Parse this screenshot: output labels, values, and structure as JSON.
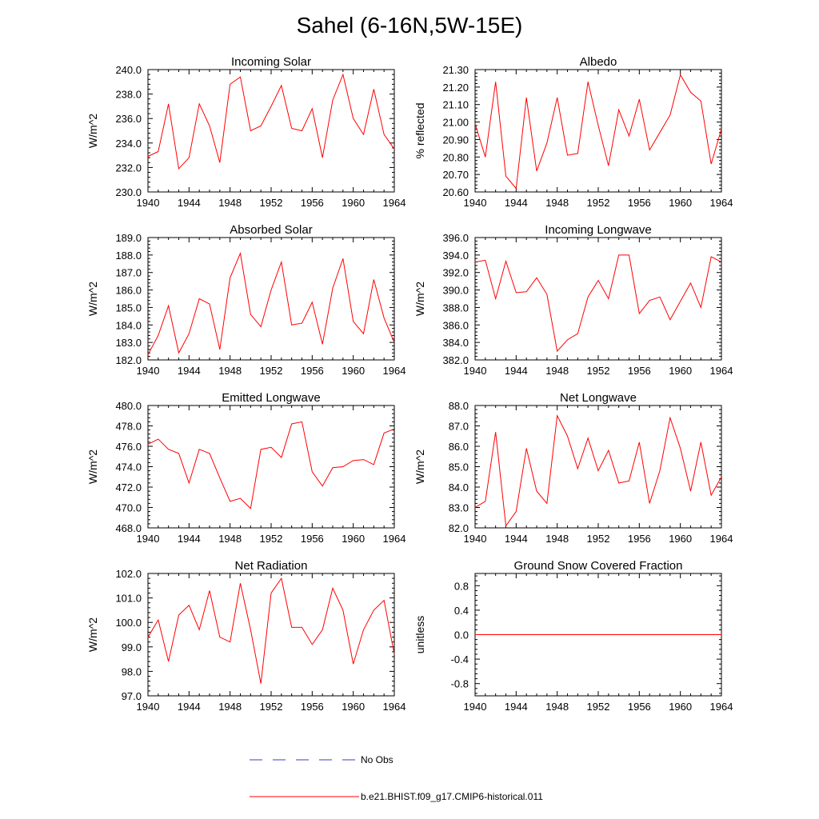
{
  "figure": {
    "title": "Sahel (6-16N,5W-15E)"
  },
  "legend": [
    {
      "label": "No Obs",
      "color": "#3b3bc4",
      "dash": true
    },
    {
      "label": "b.e21.BHIST.f09_g17.CMIP6-historical.011",
      "color": "#ff0000",
      "dash": false
    }
  ],
  "chart_data": [
    {
      "type": "line",
      "title": "Incoming Solar",
      "ylabel": "W/m^2",
      "xlim": [
        1940,
        1964
      ],
      "xticks": [
        1940,
        1944,
        1948,
        1952,
        1956,
        1960,
        1964
      ],
      "ylim": [
        230.0,
        240.0
      ],
      "yticks": [
        230.0,
        232.0,
        234.0,
        236.0,
        238.0,
        240.0
      ],
      "ydecimals": 1,
      "x": [
        1940,
        1941,
        1942,
        1943,
        1944,
        1945,
        1946,
        1947,
        1948,
        1949,
        1950,
        1951,
        1952,
        1953,
        1954,
        1955,
        1956,
        1957,
        1958,
        1959,
        1960,
        1961,
        1962,
        1963,
        1964
      ],
      "series": [
        {
          "name": "b.e21.BHIST.f09_g17.CMIP6-historical.011",
          "color": "#ff0000",
          "values": [
            232.9,
            233.3,
            237.2,
            231.9,
            232.8,
            237.2,
            235.4,
            232.4,
            238.8,
            239.4,
            235.0,
            235.4,
            237.0,
            238.7,
            235.2,
            235.0,
            236.8,
            232.8,
            237.5,
            239.6,
            236.0,
            234.7,
            238.4,
            234.7,
            233.5
          ]
        }
      ]
    },
    {
      "type": "line",
      "title": "Albedo",
      "ylabel": "% reflected",
      "xlim": [
        1940,
        1964
      ],
      "xticks": [
        1940,
        1944,
        1948,
        1952,
        1956,
        1960,
        1964
      ],
      "ylim": [
        20.6,
        21.3
      ],
      "yticks": [
        20.6,
        20.7,
        20.8,
        20.9,
        21.0,
        21.1,
        21.2,
        21.3
      ],
      "ydecimals": 2,
      "x": [
        1940,
        1941,
        1942,
        1943,
        1944,
        1945,
        1946,
        1947,
        1948,
        1949,
        1950,
        1951,
        1952,
        1953,
        1954,
        1955,
        1956,
        1957,
        1958,
        1959,
        1960,
        1961,
        1962,
        1963,
        1964
      ],
      "series": [
        {
          "name": "b.e21.BHIST.f09_g17.CMIP6-historical.011",
          "color": "#ff0000",
          "values": [
            20.99,
            20.8,
            21.23,
            20.69,
            20.62,
            21.14,
            20.72,
            20.88,
            21.14,
            20.81,
            20.82,
            21.23,
            20.98,
            20.75,
            21.07,
            20.92,
            21.13,
            20.84,
            20.94,
            21.04,
            21.27,
            21.17,
            21.12,
            20.76,
            20.96
          ]
        }
      ]
    },
    {
      "type": "line",
      "title": "Absorbed Solar",
      "ylabel": "W/m^2",
      "xlim": [
        1940,
        1964
      ],
      "xticks": [
        1940,
        1944,
        1948,
        1952,
        1956,
        1960,
        1964
      ],
      "ylim": [
        182.0,
        189.0
      ],
      "yticks": [
        182.0,
        183.0,
        184.0,
        185.0,
        186.0,
        187.0,
        188.0,
        189.0
      ],
      "ydecimals": 1,
      "x": [
        1940,
        1941,
        1942,
        1943,
        1944,
        1945,
        1946,
        1947,
        1948,
        1949,
        1950,
        1951,
        1952,
        1953,
        1954,
        1955,
        1956,
        1957,
        1958,
        1959,
        1960,
        1961,
        1962,
        1963,
        1964
      ],
      "series": [
        {
          "name": "b.e21.BHIST.f09_g17.CMIP6-historical.011",
          "color": "#ff0000",
          "values": [
            182.3,
            183.4,
            185.1,
            182.4,
            183.5,
            185.5,
            185.2,
            182.6,
            186.7,
            188.1,
            184.6,
            183.9,
            186.0,
            187.6,
            184.0,
            184.1,
            185.3,
            182.9,
            186.1,
            187.8,
            184.2,
            183.5,
            186.6,
            184.4,
            183.0
          ]
        }
      ]
    },
    {
      "type": "line",
      "title": "Incoming Longwave",
      "ylabel": "W/m^2",
      "xlim": [
        1940,
        1964
      ],
      "xticks": [
        1940,
        1944,
        1948,
        1952,
        1956,
        1960,
        1964
      ],
      "ylim": [
        382.0,
        396.0
      ],
      "yticks": [
        382.0,
        384.0,
        386.0,
        388.0,
        390.0,
        392.0,
        394.0,
        396.0
      ],
      "ydecimals": 1,
      "x": [
        1940,
        1941,
        1942,
        1943,
        1944,
        1945,
        1946,
        1947,
        1948,
        1949,
        1950,
        1951,
        1952,
        1953,
        1954,
        1955,
        1956,
        1957,
        1958,
        1959,
        1960,
        1961,
        1962,
        1963,
        1964
      ],
      "series": [
        {
          "name": "b.e21.BHIST.f09_g17.CMIP6-historical.011",
          "color": "#ff0000",
          "values": [
            393.2,
            393.4,
            389.0,
            393.3,
            389.7,
            389.8,
            391.4,
            389.5,
            383.0,
            384.3,
            385.0,
            389.2,
            391.1,
            389.0,
            394.0,
            394.0,
            387.3,
            388.8,
            389.2,
            386.6,
            388.7,
            390.8,
            388.0,
            393.8,
            393.2
          ]
        }
      ]
    },
    {
      "type": "line",
      "title": "Emitted Longwave",
      "ylabel": "W/m^2",
      "xlim": [
        1940,
        1964
      ],
      "xticks": [
        1940,
        1944,
        1948,
        1952,
        1956,
        1960,
        1964
      ],
      "ylim": [
        468.0,
        480.0
      ],
      "yticks": [
        468.0,
        470.0,
        472.0,
        474.0,
        476.0,
        478.0,
        480.0
      ],
      "ydecimals": 1,
      "x": [
        1940,
        1941,
        1942,
        1943,
        1944,
        1945,
        1946,
        1947,
        1948,
        1949,
        1950,
        1951,
        1952,
        1953,
        1954,
        1955,
        1956,
        1957,
        1958,
        1959,
        1960,
        1961,
        1962,
        1963,
        1964
      ],
      "series": [
        {
          "name": "b.e21.BHIST.f09_g17.CMIP6-historical.011",
          "color": "#ff0000",
          "values": [
            476.2,
            476.7,
            475.7,
            475.3,
            472.4,
            475.7,
            475.3,
            472.9,
            470.6,
            470.9,
            469.9,
            475.7,
            475.9,
            474.9,
            478.2,
            478.4,
            473.5,
            472.1,
            473.9,
            474.0,
            474.6,
            474.7,
            474.2,
            477.3,
            477.7
          ]
        }
      ]
    },
    {
      "type": "line",
      "title": "Net Longwave",
      "ylabel": "W/m^2",
      "xlim": [
        1940,
        1964
      ],
      "xticks": [
        1940,
        1944,
        1948,
        1952,
        1956,
        1960,
        1964
      ],
      "ylim": [
        82.0,
        88.0
      ],
      "yticks": [
        82.0,
        83.0,
        84.0,
        85.0,
        86.0,
        87.0,
        88.0
      ],
      "ydecimals": 1,
      "x": [
        1940,
        1941,
        1942,
        1943,
        1944,
        1945,
        1946,
        1947,
        1948,
        1949,
        1950,
        1951,
        1952,
        1953,
        1954,
        1955,
        1956,
        1957,
        1958,
        1959,
        1960,
        1961,
        1962,
        1963,
        1964
      ],
      "series": [
        {
          "name": "b.e21.BHIST.f09_g17.CMIP6-historical.011",
          "color": "#ff0000",
          "values": [
            83.0,
            83.3,
            86.7,
            82.1,
            82.8,
            85.9,
            83.8,
            83.2,
            87.5,
            86.5,
            84.9,
            86.4,
            84.8,
            85.8,
            84.2,
            84.3,
            86.2,
            83.2,
            84.8,
            87.4,
            85.9,
            83.8,
            86.2,
            83.6,
            84.5
          ]
        }
      ]
    },
    {
      "type": "line",
      "title": "Net Radiation",
      "ylabel": "W/m^2",
      "xlim": [
        1940,
        1964
      ],
      "xticks": [
        1940,
        1944,
        1948,
        1952,
        1956,
        1960,
        1964
      ],
      "ylim": [
        97.0,
        102.0
      ],
      "yticks": [
        97.0,
        98.0,
        99.0,
        100.0,
        101.0,
        102.0
      ],
      "ydecimals": 1,
      "x": [
        1940,
        1941,
        1942,
        1943,
        1944,
        1945,
        1946,
        1947,
        1948,
        1949,
        1950,
        1951,
        1952,
        1953,
        1954,
        1955,
        1956,
        1957,
        1958,
        1959,
        1960,
        1961,
        1962,
        1963,
        1964
      ],
      "series": [
        {
          "name": "b.e21.BHIST.f09_g17.CMIP6-historical.011",
          "color": "#ff0000",
          "values": [
            99.4,
            100.1,
            98.4,
            100.3,
            100.7,
            99.7,
            101.3,
            99.4,
            99.2,
            101.6,
            99.7,
            97.5,
            101.2,
            101.8,
            99.8,
            99.8,
            99.1,
            99.7,
            101.4,
            100.5,
            98.3,
            99.7,
            100.5,
            100.9,
            98.7
          ]
        }
      ]
    },
    {
      "type": "line",
      "title": "Ground Snow Covered Fraction",
      "ylabel": "unitless",
      "xlim": [
        1940,
        1964
      ],
      "xticks": [
        1940,
        1944,
        1948,
        1952,
        1956,
        1960,
        1964
      ],
      "ylim": [
        -1.0,
        1.0
      ],
      "yticks": [
        -0.8,
        -0.4,
        0.0,
        0.4,
        0.8
      ],
      "ydecimals": 1,
      "x": [
        1940,
        1964
      ],
      "series": [
        {
          "name": "b.e21.BHIST.f09_g17.CMIP6-historical.011",
          "color": "#ff0000",
          "values": [
            0.0,
            0.0
          ]
        }
      ]
    }
  ]
}
